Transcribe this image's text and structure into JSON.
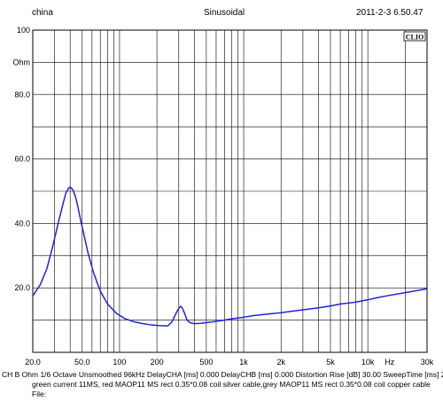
{
  "header": {
    "left": "china",
    "center": "Sinusoidal",
    "right": "2011-2-3 6.50.47",
    "logo": "CLIO"
  },
  "footer": {
    "params": "CH B  Ohm   1/6 Octave   Unsmoothed   96kHz   DelayCHA [ms] 0.000     DelayCHB [ms] 0.000   Distortion Rise [dB] 30.00   SweepTime [ms] 2184",
    "note": "green current 11MS, red MAOP11 MS rect 0.35*0.08 coil silver cable,grey MAOP11 MS rect 0.35*0.08 coil copper cable",
    "file": "File:"
  },
  "chart_data": {
    "type": "line",
    "x_scale": "log",
    "xlim": [
      20,
      30000
    ],
    "ylim": [
      0,
      100
    ],
    "ylabel": "Ohm",
    "y_ticks": [
      {
        "value": 100,
        "label": "100"
      },
      {
        "value": 80,
        "label": "80.0"
      },
      {
        "value": 60,
        "label": "60.0"
      },
      {
        "value": 40,
        "label": "40.0"
      },
      {
        "value": 20,
        "label": "20.0"
      }
    ],
    "y_unit_label": {
      "value": 90,
      "label": "Ohm"
    },
    "x_ticks": [
      {
        "value": 20,
        "label": "20.0"
      },
      {
        "value": 50,
        "label": "50.0"
      },
      {
        "value": 100,
        "label": "100"
      },
      {
        "value": 200,
        "label": "200"
      },
      {
        "value": 500,
        "label": "500"
      },
      {
        "value": 1000,
        "label": "1k"
      },
      {
        "value": 2000,
        "label": "2k"
      },
      {
        "value": 5000,
        "label": "5k"
      },
      {
        "value": 10000,
        "label": "10k"
      },
      {
        "value": 15000,
        "label": "Hz"
      },
      {
        "value": 30000,
        "label": "30k"
      }
    ],
    "series": [
      {
        "color": "#2222dd",
        "x": [
          20,
          23,
          26,
          29,
          32,
          35,
          37,
          39,
          40,
          42,
          44,
          46,
          48,
          52,
          56,
          62,
          70,
          80,
          95,
          110,
          130,
          150,
          180,
          210,
          245,
          265,
          280,
          295,
          310,
          320,
          335,
          350,
          370,
          400,
          450,
          520,
          600,
          700,
          800,
          1000,
          1200,
          1500,
          2000,
          2500,
          3000,
          4000,
          5000,
          6000,
          7000,
          8000,
          10000,
          12000,
          15000,
          20000,
          25000,
          30000
        ],
        "y": [
          17.5,
          21,
          26,
          33,
          40,
          46,
          49.5,
          51,
          51.3,
          50.5,
          48.5,
          45.5,
          42,
          36,
          30.5,
          24.5,
          19,
          15,
          12,
          10.5,
          9.5,
          9,
          8.5,
          8.3,
          8.2,
          9.5,
          11.5,
          13.2,
          14.3,
          13.8,
          12,
          10,
          9.2,
          8.9,
          9,
          9.3,
          9.6,
          10,
          10.4,
          10.9,
          11.4,
          11.8,
          12.3,
          12.8,
          13.2,
          13.8,
          14.4,
          15,
          15.3,
          15.6,
          16.3,
          17,
          17.7,
          18.5,
          19.2,
          19.7
        ]
      }
    ]
  }
}
